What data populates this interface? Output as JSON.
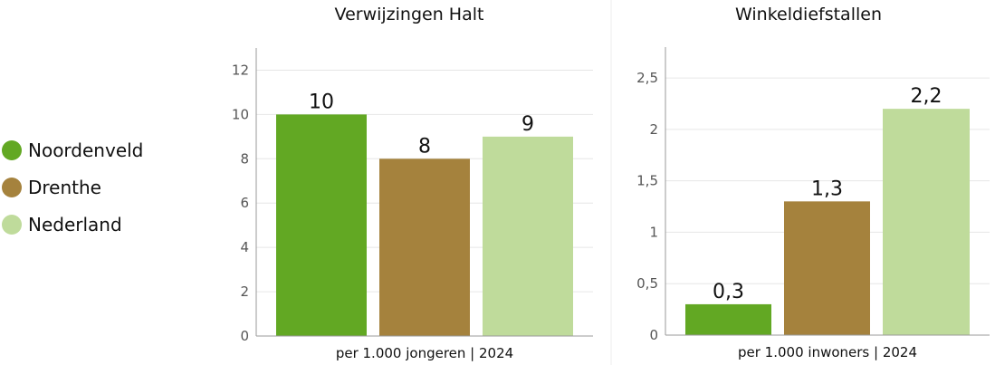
{
  "legend": [
    {
      "label": "Noordenveld",
      "color": "#62a823"
    },
    {
      "label": "Drenthe",
      "color": "#a5823d"
    },
    {
      "label": "Nederland",
      "color": "#bfdb9b"
    }
  ],
  "chart_data": [
    {
      "type": "bar",
      "title": "Verwijzingen Halt",
      "xlabel": "per 1.000 jongeren | 2024",
      "categories": [
        "Noordenveld",
        "Drenthe",
        "Nederland"
      ],
      "values": [
        10,
        8,
        9
      ],
      "value_labels": [
        "10",
        "8",
        "9"
      ],
      "ylim": [
        0,
        13
      ],
      "yticks": [
        0,
        2,
        4,
        6,
        8,
        10,
        12
      ],
      "ytick_labels": [
        "0",
        "2",
        "4",
        "6",
        "8",
        "10",
        "12"
      ],
      "grid": true,
      "legend": "left"
    },
    {
      "type": "bar",
      "title": "Winkeldiefstallen",
      "xlabel": "per 1.000 inwoners | 2024",
      "categories": [
        "Noordenveld",
        "Drenthe",
        "Nederland"
      ],
      "values": [
        0.3,
        1.3,
        2.2
      ],
      "value_labels": [
        "0,3",
        "1,3",
        "2,2"
      ],
      "ylim": [
        0,
        2.8
      ],
      "yticks": [
        0,
        0.5,
        1,
        1.5,
        2,
        2.5
      ],
      "ytick_labels": [
        "0",
        "0,5",
        "1",
        "1,5",
        "2",
        "2,5"
      ],
      "grid": true,
      "legend": "left"
    }
  ]
}
